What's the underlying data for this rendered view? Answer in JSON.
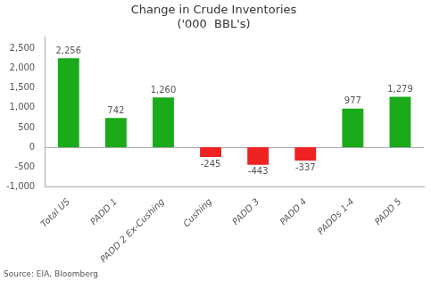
{
  "chart_data": {
    "type": "bar",
    "title": "Change in Crude Inventories\n('000  BBL's)",
    "categories": [
      "Total US",
      "PADD 1",
      "PADD 2 Ex-Cushing",
      "Cushing",
      "PADD 3",
      "PADD 4",
      "PADDs 1-4",
      "PADD 5"
    ],
    "values": [
      2256,
      742,
      1260,
      -245,
      -443,
      -337,
      977,
      1279
    ],
    "value_labels": [
      "2,256",
      "742",
      "1,260",
      "-245",
      "-443",
      "-337",
      "977",
      "1,279"
    ],
    "colors": [
      "#1aaa1a",
      "#1aaa1a",
      "#1aaa1a",
      "#ee2222",
      "#ee2222",
      "#ee2222",
      "#1aaa1a",
      "#1aaa1a"
    ],
    "ylim": [
      -1000,
      2800
    ],
    "yticks": [
      {
        "value": -1000,
        "label": "-1,000"
      },
      -500,
      0,
      500,
      {
        "value": 1000,
        "label": "1,000"
      },
      {
        "value": 1500,
        "label": "1,500"
      },
      {
        "value": 2000,
        "label": "2,000"
      },
      {
        "value": 2500,
        "label": "2,500"
      }
    ],
    "data_labels": true,
    "grid": false,
    "annotations": [
      "Source: EIA, Bloomberg"
    ]
  }
}
